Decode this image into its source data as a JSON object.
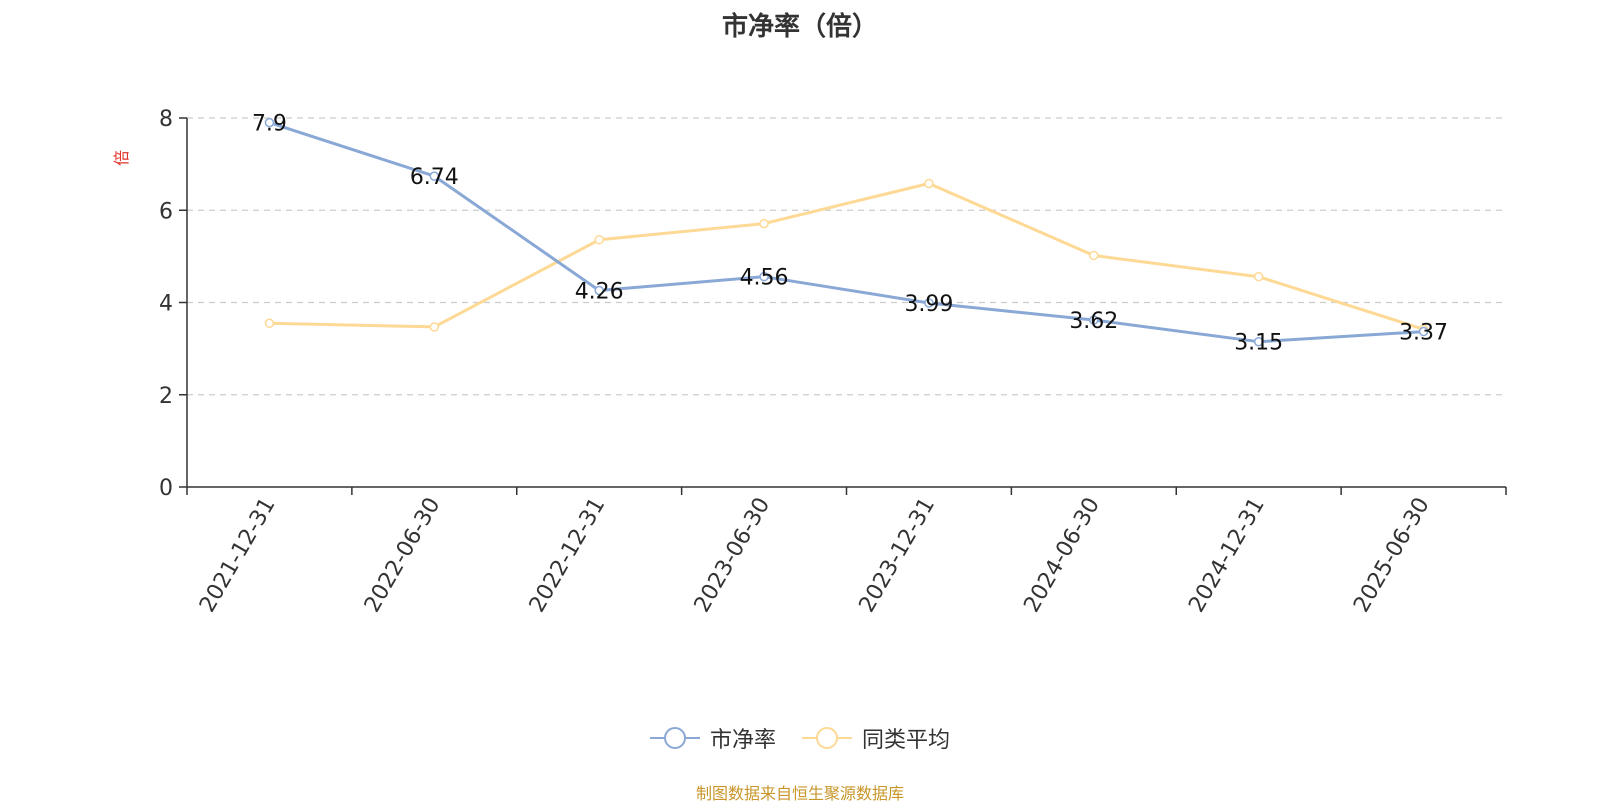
{
  "colors": {
    "series_pb": "#8aa8d6",
    "series_peer": "#fdd995",
    "axis": "#333333",
    "grid": "#cccccc",
    "ylabel": "#e0302a",
    "source": "#c8962a"
  },
  "legend": {
    "marker_icon": "circle-line-icon"
  },
  "source_note": "制图数据来自恒生聚源数据库",
  "chart_data": {
    "type": "line",
    "title": "市净率（倍）",
    "ylabel": "倍",
    "xlabel": "",
    "categories": [
      "2021-12-31",
      "2022-06-30",
      "2022-12-31",
      "2023-06-30",
      "2023-12-31",
      "2024-06-30",
      "2024-12-31",
      "2025-06-30"
    ],
    "ylim": [
      0,
      8
    ],
    "yticks": [
      "0",
      "2",
      "4",
      "6",
      "8"
    ],
    "grid": true,
    "legend_position": "bottom-center",
    "series": [
      {
        "name": "市净率",
        "values": [
          7.9,
          6.74,
          4.26,
          4.56,
          3.99,
          3.62,
          3.15,
          3.37
        ],
        "labels": [
          "7.9",
          "6.74",
          "4.26",
          "4.56",
          "3.99",
          "3.62",
          "3.15",
          "3.37"
        ]
      },
      {
        "name": "同类平均",
        "values": [
          3.55,
          3.47,
          5.36,
          5.71,
          6.58,
          5.02,
          4.56,
          3.42
        ]
      }
    ]
  }
}
